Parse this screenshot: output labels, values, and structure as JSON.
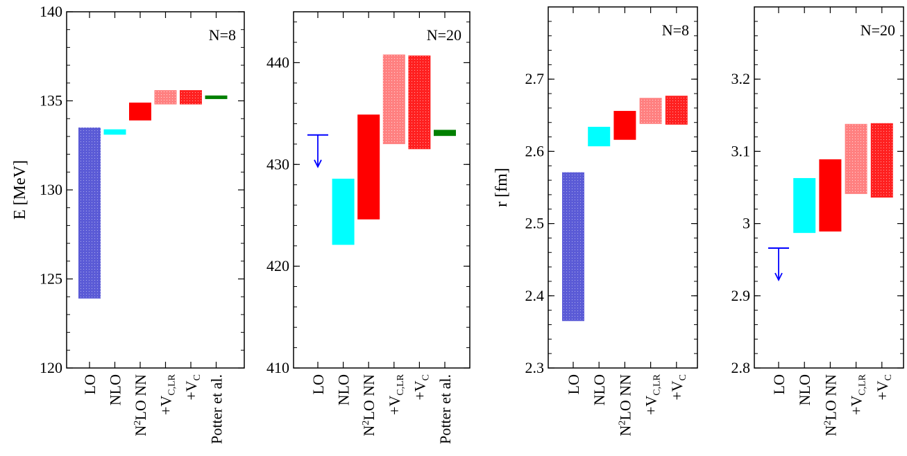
{
  "chart_data": [
    {
      "type": "bar",
      "panel_label": "N=8",
      "ylabel": "E [MeV]",
      "ylim": [
        120,
        140
      ],
      "yticks": [
        120,
        125,
        130,
        135,
        140
      ],
      "categories": [
        "LO",
        "NLO",
        "N2LO NN",
        "+VC,LR",
        "+VC",
        "Potter et al."
      ],
      "ranges": [
        [
          123.9,
          133.5
        ],
        [
          133.1,
          133.4
        ],
        [
          133.9,
          134.9
        ],
        [
          134.8,
          135.6
        ],
        [
          134.8,
          135.6
        ],
        [
          135.1,
          135.3
        ]
      ],
      "colors": [
        "#5b5bd6",
        "#00ffff",
        "#ff0000",
        "#ff7a7a",
        "#ff2a2a",
        "#008000"
      ]
    },
    {
      "type": "bar",
      "panel_label": "N=20",
      "ylabel": "",
      "ylim": [
        410,
        445
      ],
      "yticks": [
        410,
        420,
        430,
        440
      ],
      "categories": [
        "LO",
        "NLO",
        "N2LO NN",
        "+VC,LR",
        "+VC",
        "Potter et al."
      ],
      "ranges": [
        null,
        [
          422.1,
          428.6
        ],
        [
          424.6,
          434.9
        ],
        [
          432.0,
          440.8
        ],
        [
          431.5,
          440.7
        ],
        [
          432.8,
          433.4
        ]
      ],
      "upper_limit": {
        "index": 0,
        "value": 432.9
      },
      "colors": [
        "#0000ff",
        "#00ffff",
        "#ff0000",
        "#ff7a7a",
        "#ff2a2a",
        "#008000"
      ]
    },
    {
      "type": "bar",
      "panel_label": "N=8",
      "ylabel": "r [fm]",
      "ylim": [
        2.3,
        2.8
      ],
      "yticks": [
        2.3,
        2.4,
        2.5,
        2.6,
        2.7
      ],
      "categories": [
        "LO",
        "NLO",
        "N2LO NN",
        "+VC,LR",
        "+VC"
      ],
      "ranges": [
        [
          2.365,
          2.571
        ],
        [
          2.607,
          2.634
        ],
        [
          2.616,
          2.656
        ],
        [
          2.638,
          2.674
        ],
        [
          2.637,
          2.677
        ]
      ],
      "colors": [
        "#5b5bd6",
        "#00ffff",
        "#ff0000",
        "#ff7a7a",
        "#ff2a2a"
      ]
    },
    {
      "type": "bar",
      "panel_label": "N=20",
      "ylabel": "",
      "ylim": [
        2.8,
        3.3
      ],
      "yticks": [
        2.8,
        2.9,
        3.0,
        3.1,
        3.2
      ],
      "ytick_labels": [
        "2.8",
        "2.9",
        "3",
        "3.1",
        "3.2"
      ],
      "categories": [
        "LO",
        "NLO",
        "N2LO NN",
        "+VC,LR",
        "+VC"
      ],
      "ranges": [
        null,
        [
          2.987,
          3.063
        ],
        [
          2.989,
          3.089
        ],
        [
          3.041,
          3.138
        ],
        [
          3.036,
          3.139
        ]
      ],
      "upper_limit": {
        "index": 0,
        "value": 2.966
      },
      "colors": [
        "#0000ff",
        "#00ffff",
        "#ff0000",
        "#ff7a7a",
        "#ff2a2a"
      ]
    }
  ]
}
